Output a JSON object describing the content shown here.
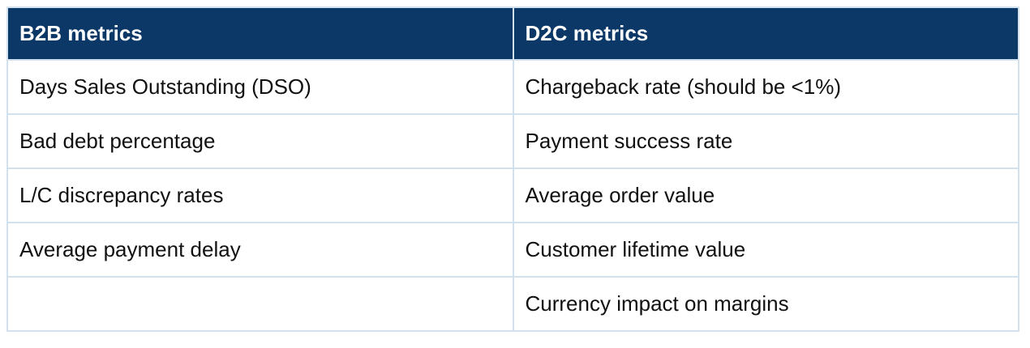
{
  "table": {
    "header": [
      "B2B metrics",
      "D2C metrics"
    ],
    "rows": [
      [
        "Days Sales Outstanding (DSO)",
        "Chargeback rate (should be <1%)"
      ],
      [
        "Bad debt percentage",
        "Payment success rate"
      ],
      [
        "L/C discrepancy rates",
        "Average order value"
      ],
      [
        "Average payment delay",
        "Customer lifetime value"
      ],
      [
        null,
        "Currency impact on margins"
      ]
    ]
  }
}
